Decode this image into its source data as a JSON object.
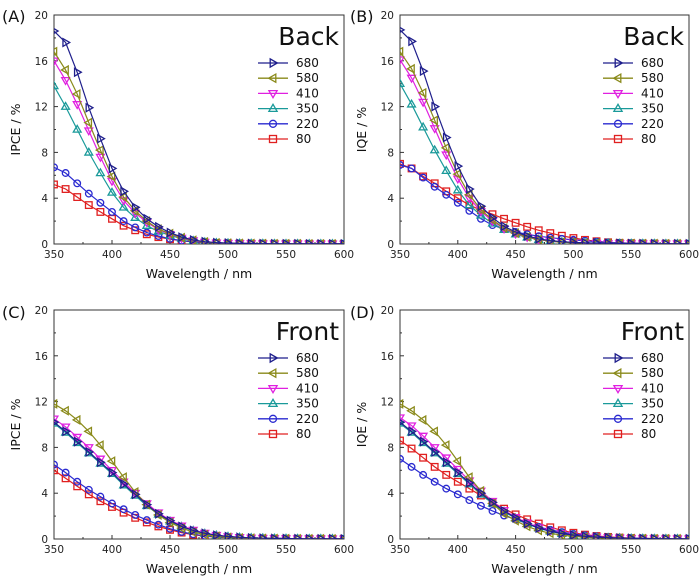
{
  "chart_data": [
    {
      "type": "line",
      "panel_label": "(A)",
      "annotation": "Back",
      "xlabel": "Wavelength / nm",
      "ylabel": "IPCE / %",
      "xlim": [
        350,
        600
      ],
      "ylim": [
        0,
        20
      ],
      "xticks": [
        350,
        400,
        450,
        500,
        550,
        600
      ],
      "yticks": [
        0,
        4,
        8,
        12,
        16,
        20
      ],
      "legend_position": "top-right",
      "x": [
        350,
        360,
        370,
        380,
        390,
        400,
        410,
        420,
        430,
        440,
        450,
        460,
        470,
        480,
        490,
        500,
        510,
        520,
        530,
        540,
        550,
        560,
        570,
        580,
        590,
        600
      ],
      "series": [
        {
          "name": "680",
          "color": "#1f1f8c",
          "marker": "triangle-right",
          "values": [
            18.6,
            17.6,
            15.0,
            11.9,
            9.2,
            6.6,
            4.6,
            3.2,
            2.2,
            1.5,
            1.0,
            0.6,
            0.35,
            0.2,
            0.12,
            0.08,
            0.05,
            0.04,
            0.03,
            0.02,
            0.02,
            0.02,
            0.01,
            0.01,
            0.01,
            0.01
          ]
        },
        {
          "name": "580",
          "color": "#8a8a1a",
          "marker": "triangle-left",
          "values": [
            16.8,
            15.2,
            13.1,
            10.6,
            8.2,
            5.9,
            4.1,
            2.9,
            2.0,
            1.3,
            0.9,
            0.55,
            0.32,
            0.18,
            0.1,
            0.07,
            0.05,
            0.04,
            0.03,
            0.02,
            0.02,
            0.02,
            0.01,
            0.01,
            0.01,
            0.01
          ]
        },
        {
          "name": "410",
          "color": "#e020e0",
          "marker": "triangle-down",
          "values": [
            16.0,
            14.3,
            12.2,
            9.9,
            7.6,
            5.5,
            3.8,
            2.7,
            1.9,
            1.25,
            0.85,
            0.52,
            0.3,
            0.17,
            0.1,
            0.07,
            0.05,
            0.04,
            0.03,
            0.02,
            0.02,
            0.02,
            0.01,
            0.01,
            0.01,
            0.01
          ]
        },
        {
          "name": "350",
          "color": "#1a9a9a",
          "marker": "triangle-up",
          "values": [
            13.8,
            12.0,
            10.0,
            8.0,
            6.2,
            4.5,
            3.2,
            2.3,
            1.6,
            1.1,
            0.75,
            0.48,
            0.28,
            0.16,
            0.1,
            0.07,
            0.05,
            0.04,
            0.03,
            0.02,
            0.02,
            0.02,
            0.01,
            0.01,
            0.01,
            0.01
          ]
        },
        {
          "name": "220",
          "color": "#2a2ad0",
          "marker": "circle",
          "values": [
            6.7,
            6.2,
            5.3,
            4.4,
            3.6,
            2.8,
            2.0,
            1.45,
            1.0,
            0.7,
            0.45,
            0.3,
            0.2,
            0.12,
            0.08,
            0.06,
            0.05,
            0.04,
            0.03,
            0.02,
            0.02,
            0.02,
            0.01,
            0.01,
            0.01,
            0.01
          ]
        },
        {
          "name": "80",
          "color": "#e02020",
          "marker": "square",
          "values": [
            5.2,
            4.8,
            4.1,
            3.4,
            2.8,
            2.2,
            1.6,
            1.2,
            0.85,
            0.6,
            0.42,
            0.28,
            0.18,
            0.11,
            0.07,
            0.05,
            0.04,
            0.03,
            0.03,
            0.02,
            0.02,
            0.02,
            0.01,
            0.01,
            0.01,
            0.01
          ]
        }
      ]
    },
    {
      "type": "line",
      "panel_label": "(B)",
      "annotation": "Back",
      "xlabel": "Wavelength / nm",
      "ylabel": "IQE / %",
      "xlim": [
        350,
        600
      ],
      "ylim": [
        0,
        20
      ],
      "xticks": [
        350,
        400,
        450,
        500,
        550,
        600
      ],
      "yticks": [
        0,
        4,
        8,
        12,
        16,
        20
      ],
      "legend_position": "top-right",
      "x": [
        350,
        360,
        370,
        380,
        390,
        400,
        410,
        420,
        430,
        440,
        450,
        460,
        470,
        480,
        490,
        500,
        510,
        520,
        530,
        540,
        550,
        560,
        570,
        580,
        590,
        600
      ],
      "series": [
        {
          "name": "680",
          "color": "#1f1f8c",
          "marker": "triangle-right",
          "values": [
            18.7,
            17.7,
            15.1,
            12.0,
            9.3,
            6.8,
            4.8,
            3.3,
            2.3,
            1.55,
            1.05,
            0.7,
            0.45,
            0.3,
            0.2,
            0.14,
            0.1,
            0.08,
            0.06,
            0.05,
            0.04,
            0.03,
            0.03,
            0.02,
            0.02,
            0.02
          ]
        },
        {
          "name": "580",
          "color": "#8a8a1a",
          "marker": "triangle-left",
          "values": [
            16.8,
            15.3,
            13.2,
            10.8,
            8.4,
            6.1,
            4.3,
            3.0,
            2.1,
            1.4,
            0.95,
            0.62,
            0.4,
            0.26,
            0.17,
            0.12,
            0.09,
            0.07,
            0.05,
            0.04,
            0.04,
            0.03,
            0.03,
            0.02,
            0.02,
            0.02
          ]
        },
        {
          "name": "410",
          "color": "#e020e0",
          "marker": "triangle-down",
          "values": [
            16.1,
            14.5,
            12.4,
            10.1,
            7.8,
            5.7,
            4.0,
            2.85,
            2.0,
            1.35,
            0.9,
            0.6,
            0.38,
            0.25,
            0.17,
            0.12,
            0.09,
            0.07,
            0.05,
            0.04,
            0.04,
            0.03,
            0.03,
            0.02,
            0.02,
            0.02
          ]
        },
        {
          "name": "350",
          "color": "#1a9a9a",
          "marker": "triangle-up",
          "values": [
            14.0,
            12.2,
            10.2,
            8.2,
            6.4,
            4.7,
            3.4,
            2.5,
            1.8,
            1.25,
            0.85,
            0.58,
            0.38,
            0.25,
            0.17,
            0.12,
            0.09,
            0.07,
            0.05,
            0.04,
            0.04,
            0.03,
            0.03,
            0.02,
            0.02,
            0.02
          ]
        },
        {
          "name": "220",
          "color": "#2a2ad0",
          "marker": "circle",
          "values": [
            6.9,
            6.6,
            5.8,
            5.0,
            4.3,
            3.6,
            2.9,
            2.2,
            1.65,
            1.3,
            1.05,
            0.85,
            0.68,
            0.55,
            0.45,
            0.36,
            0.28,
            0.2,
            0.14,
            0.1,
            0.07,
            0.05,
            0.04,
            0.03,
            0.02,
            0.02
          ]
        },
        {
          "name": "80",
          "color": "#e02020",
          "marker": "square",
          "values": [
            7.0,
            6.6,
            5.9,
            5.3,
            4.6,
            4.0,
            3.4,
            2.95,
            2.6,
            2.2,
            1.85,
            1.5,
            1.2,
            0.95,
            0.72,
            0.52,
            0.36,
            0.24,
            0.15,
            0.1,
            0.07,
            0.05,
            0.04,
            0.03,
            0.02,
            0.02
          ]
        }
      ]
    },
    {
      "type": "line",
      "panel_label": "(C)",
      "annotation": "Front",
      "xlabel": "Wavelength / nm",
      "ylabel": "IPCE / %",
      "xlim": [
        350,
        600
      ],
      "ylim": [
        0,
        20
      ],
      "xticks": [
        350,
        400,
        450,
        500,
        550,
        600
      ],
      "yticks": [
        0,
        4,
        8,
        12,
        16,
        20
      ],
      "legend_position": "top-right",
      "x": [
        350,
        360,
        370,
        380,
        390,
        400,
        410,
        420,
        430,
        440,
        450,
        460,
        470,
        480,
        490,
        500,
        510,
        520,
        530,
        540,
        550,
        560,
        570,
        580,
        590,
        600
      ],
      "series": [
        {
          "name": "680",
          "color": "#1f1f8c",
          "marker": "triangle-right",
          "values": [
            10.2,
            9.4,
            8.5,
            7.6,
            6.7,
            5.8,
            4.8,
            3.9,
            3.0,
            2.2,
            1.6,
            1.1,
            0.75,
            0.5,
            0.33,
            0.22,
            0.15,
            0.1,
            0.07,
            0.05,
            0.04,
            0.03,
            0.02,
            0.02,
            0.02,
            0.01
          ]
        },
        {
          "name": "580",
          "color": "#8a8a1a",
          "marker": "triangle-left",
          "values": [
            11.8,
            11.2,
            10.4,
            9.4,
            8.2,
            6.8,
            5.4,
            4.1,
            3.0,
            2.1,
            1.45,
            0.95,
            0.6,
            0.38,
            0.24,
            0.15,
            0.1,
            0.07,
            0.05,
            0.04,
            0.03,
            0.02,
            0.02,
            0.02,
            0.01,
            0.01
          ]
        },
        {
          "name": "410",
          "color": "#e020e0",
          "marker": "triangle-down",
          "values": [
            10.5,
            9.8,
            8.9,
            8.0,
            7.0,
            6.0,
            5.0,
            4.0,
            3.1,
            2.3,
            1.65,
            1.15,
            0.78,
            0.52,
            0.34,
            0.22,
            0.15,
            0.1,
            0.07,
            0.05,
            0.04,
            0.03,
            0.02,
            0.02,
            0.02,
            0.01
          ]
        },
        {
          "name": "350",
          "color": "#1a9a9a",
          "marker": "triangle-up",
          "values": [
            10.1,
            9.3,
            8.4,
            7.5,
            6.6,
            5.7,
            4.7,
            3.8,
            2.9,
            2.15,
            1.55,
            1.08,
            0.73,
            0.48,
            0.32,
            0.21,
            0.14,
            0.1,
            0.07,
            0.05,
            0.04,
            0.03,
            0.02,
            0.02,
            0.02,
            0.01
          ]
        },
        {
          "name": "220",
          "color": "#2a2ad0",
          "marker": "circle",
          "values": [
            6.5,
            5.8,
            5.0,
            4.3,
            3.7,
            3.1,
            2.6,
            2.1,
            1.65,
            1.25,
            0.9,
            0.62,
            0.42,
            0.28,
            0.18,
            0.12,
            0.08,
            0.06,
            0.04,
            0.03,
            0.02,
            0.02,
            0.02,
            0.01,
            0.01,
            0.01
          ]
        },
        {
          "name": "80",
          "color": "#e02020",
          "marker": "square",
          "values": [
            6.0,
            5.3,
            4.6,
            3.9,
            3.3,
            2.8,
            2.3,
            1.85,
            1.45,
            1.1,
            0.8,
            0.56,
            0.38,
            0.25,
            0.16,
            0.1,
            0.07,
            0.05,
            0.04,
            0.03,
            0.02,
            0.02,
            0.01,
            0.01,
            0.01,
            0.01
          ]
        }
      ]
    },
    {
      "type": "line",
      "panel_label": "(D)",
      "annotation": "Front",
      "xlabel": "Wavelength / nm",
      "ylabel": "IQE / %",
      "xlim": [
        350,
        600
      ],
      "ylim": [
        0,
        20
      ],
      "xticks": [
        350,
        400,
        450,
        500,
        550,
        600
      ],
      "yticks": [
        0,
        4,
        8,
        12,
        16,
        20
      ],
      "legend_position": "top-right",
      "x": [
        350,
        360,
        370,
        380,
        390,
        400,
        410,
        420,
        430,
        440,
        450,
        460,
        470,
        480,
        490,
        500,
        510,
        520,
        530,
        540,
        550,
        560,
        570,
        580,
        590,
        600
      ],
      "series": [
        {
          "name": "680",
          "color": "#1f1f8c",
          "marker": "triangle-right",
          "values": [
            10.2,
            9.4,
            8.5,
            7.6,
            6.7,
            5.8,
            4.9,
            4.0,
            3.2,
            2.45,
            1.85,
            1.35,
            0.95,
            0.68,
            0.48,
            0.34,
            0.24,
            0.17,
            0.12,
            0.08,
            0.06,
            0.04,
            0.03,
            0.02,
            0.02,
            0.02
          ]
        },
        {
          "name": "580",
          "color": "#8a8a1a",
          "marker": "triangle-left",
          "values": [
            11.8,
            11.2,
            10.4,
            9.4,
            8.2,
            6.8,
            5.4,
            4.2,
            3.1,
            2.2,
            1.6,
            1.1,
            0.75,
            0.5,
            0.34,
            0.23,
            0.16,
            0.11,
            0.08,
            0.06,
            0.04,
            0.03,
            0.02,
            0.02,
            0.02,
            0.01
          ]
        },
        {
          "name": "410",
          "color": "#e020e0",
          "marker": "triangle-down",
          "values": [
            10.6,
            9.9,
            9.0,
            8.0,
            7.1,
            6.1,
            5.1,
            4.2,
            3.3,
            2.5,
            1.9,
            1.4,
            1.0,
            0.7,
            0.5,
            0.35,
            0.25,
            0.18,
            0.13,
            0.09,
            0.06,
            0.04,
            0.03,
            0.02,
            0.02,
            0.02
          ]
        },
        {
          "name": "350",
          "color": "#1a9a9a",
          "marker": "triangle-up",
          "values": [
            10.1,
            9.3,
            8.4,
            7.5,
            6.6,
            5.7,
            4.8,
            3.9,
            3.1,
            2.4,
            1.8,
            1.32,
            0.94,
            0.66,
            0.46,
            0.32,
            0.22,
            0.15,
            0.11,
            0.08,
            0.05,
            0.04,
            0.03,
            0.02,
            0.02,
            0.02
          ]
        },
        {
          "name": "220",
          "color": "#2a2ad0",
          "marker": "circle",
          "values": [
            7.0,
            6.3,
            5.6,
            5.0,
            4.4,
            3.9,
            3.4,
            2.9,
            2.45,
            2.05,
            1.7,
            1.35,
            1.05,
            0.8,
            0.6,
            0.44,
            0.32,
            0.22,
            0.15,
            0.1,
            0.07,
            0.05,
            0.03,
            0.02,
            0.02,
            0.02
          ]
        },
        {
          "name": "80",
          "color": "#e02020",
          "marker": "square",
          "values": [
            8.6,
            7.9,
            7.1,
            6.3,
            5.6,
            5.0,
            4.4,
            3.8,
            3.2,
            2.65,
            2.15,
            1.72,
            1.35,
            1.02,
            0.76,
            0.54,
            0.38,
            0.26,
            0.18,
            0.12,
            0.08,
            0.05,
            0.04,
            0.03,
            0.02,
            0.02
          ]
        }
      ]
    }
  ]
}
